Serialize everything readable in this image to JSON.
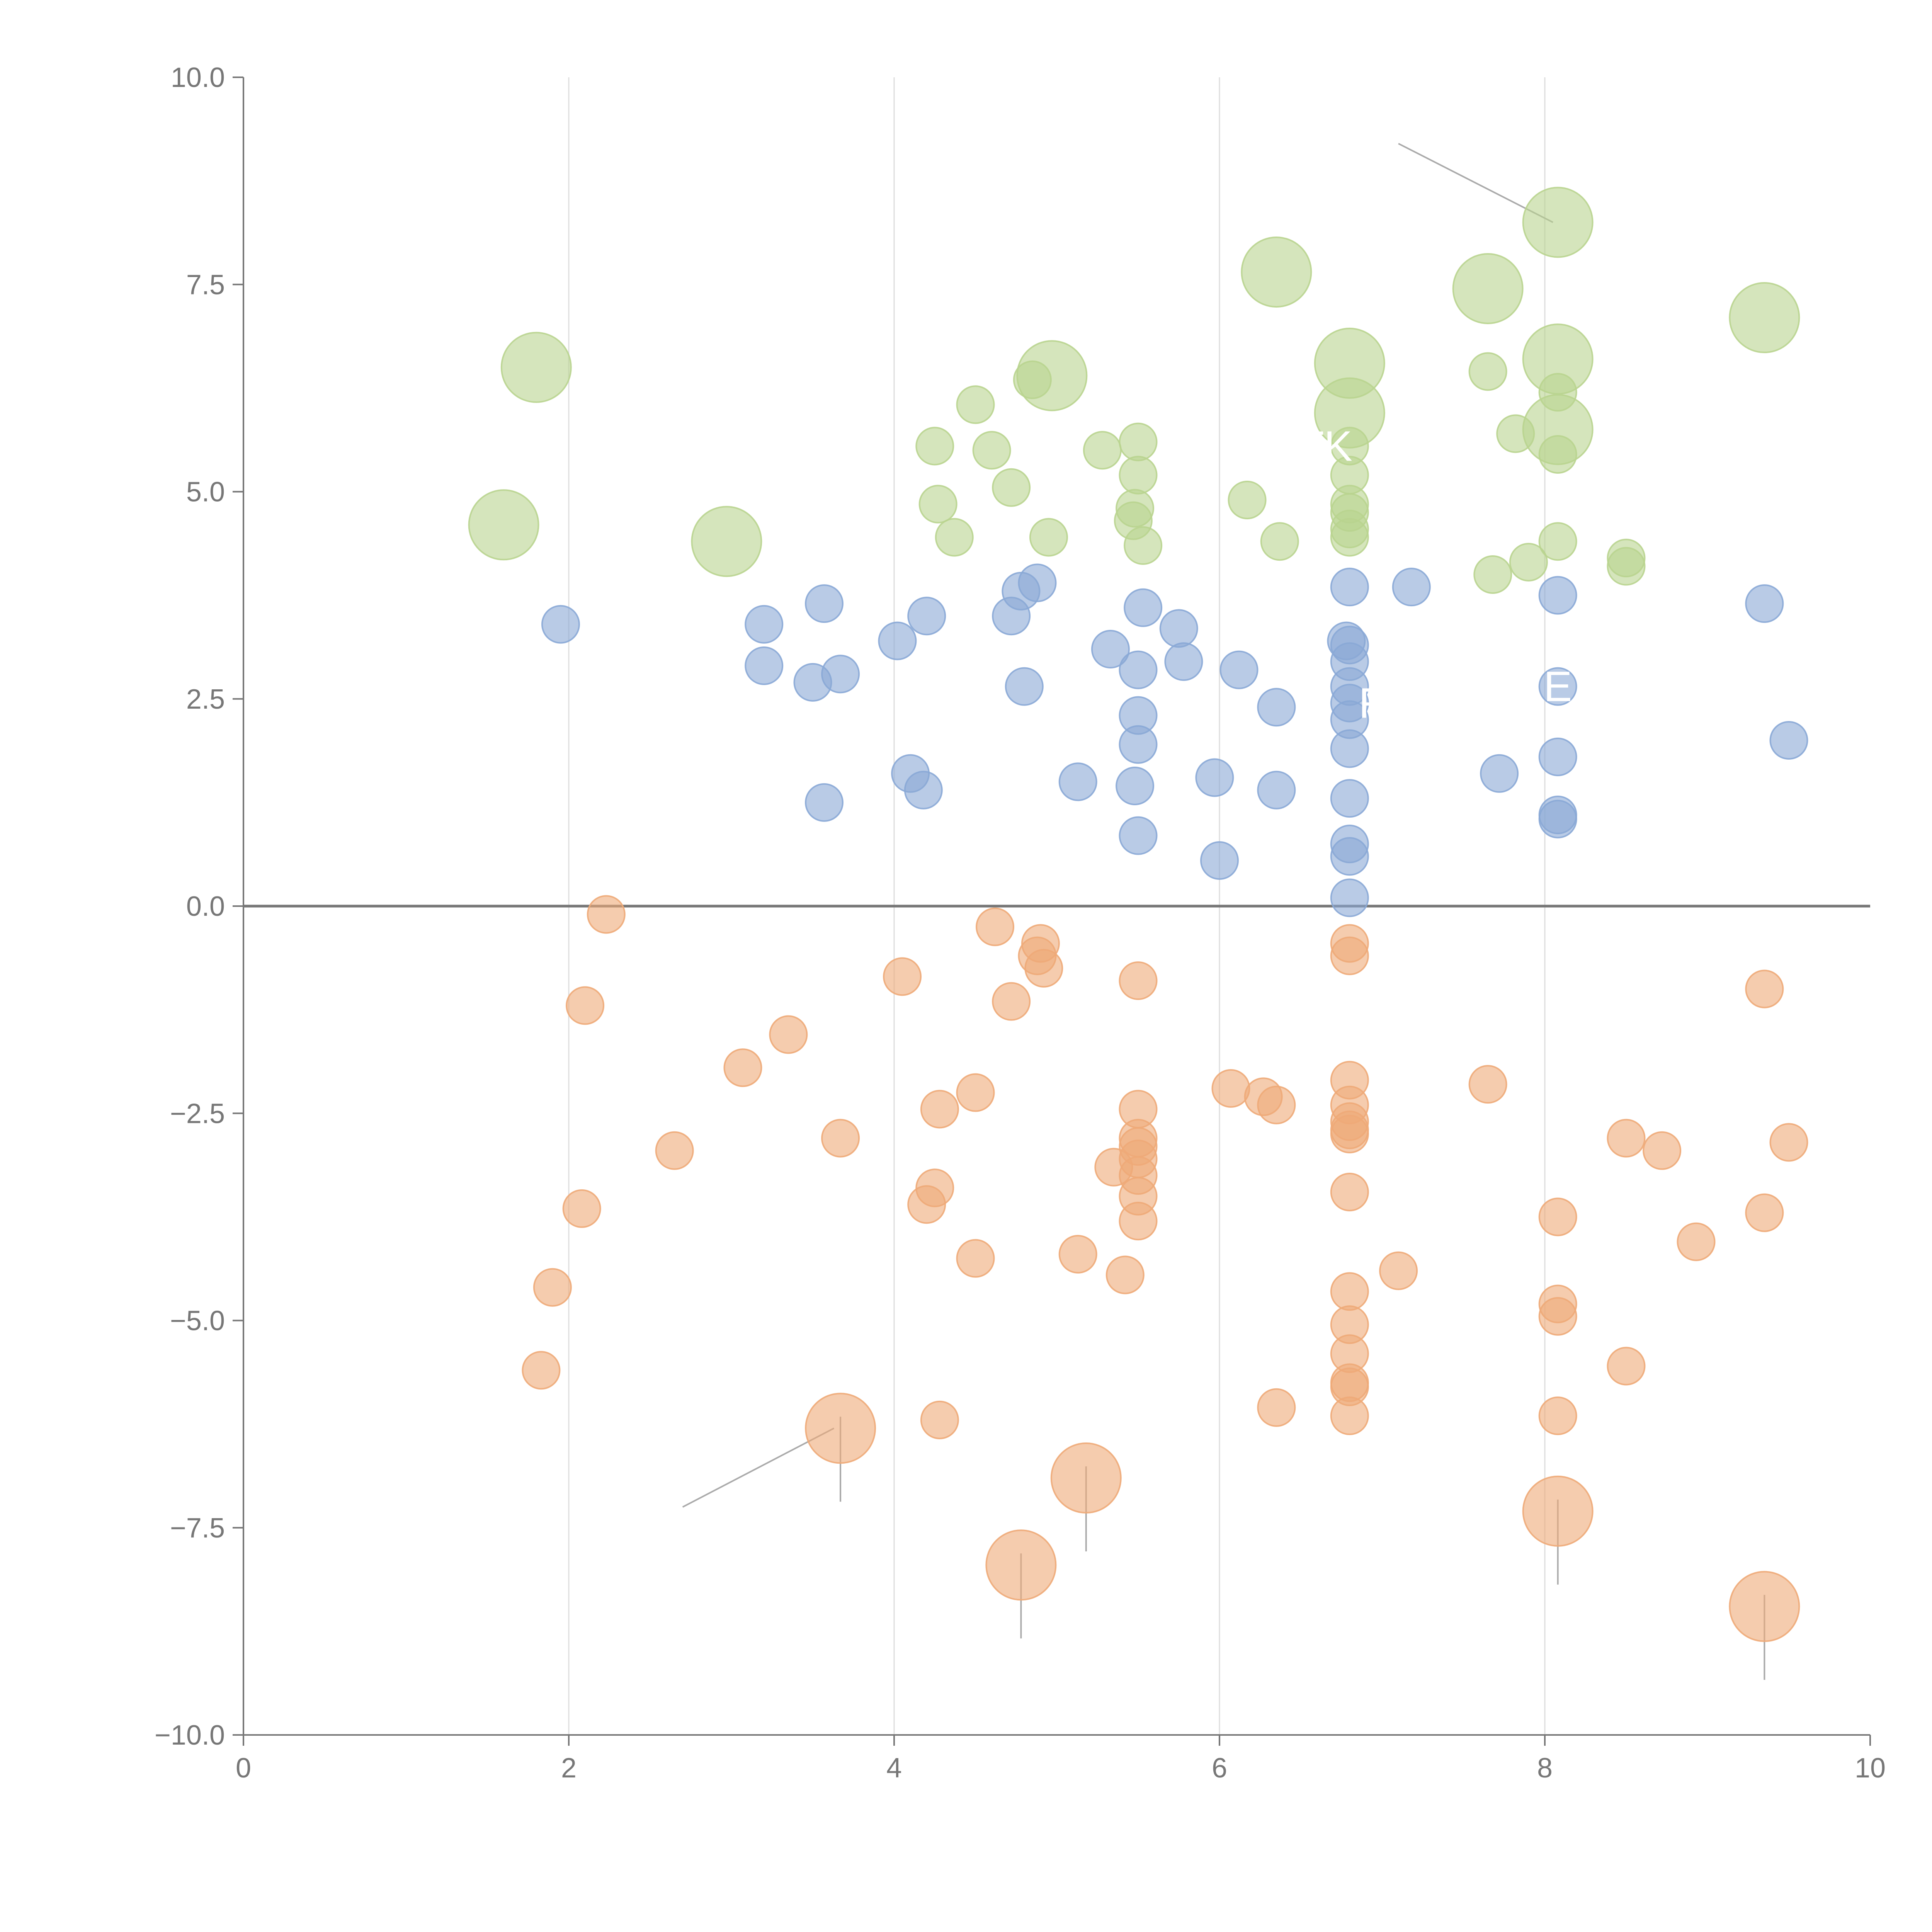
{
  "chart_data": {
    "type": "scatter",
    "title": "",
    "xlabel": "",
    "ylabel": "",
    "xlim": [
      0,
      10
    ],
    "ylim": [
      -10,
      10
    ],
    "x_ticks": [
      0,
      2,
      4,
      6,
      8,
      10
    ],
    "y_ticks": [
      -10,
      -7.5,
      -5,
      -2.5,
      0,
      2.5,
      5,
      7.5,
      10
    ],
    "x_tick_labels": [
      "0",
      "2",
      "4",
      "6",
      "8",
      "10"
    ],
    "y_tick_labels": [
      "−10.0",
      "−7.5",
      "−5.0",
      "−2.5",
      "0.0",
      "2.5",
      "5.0",
      "7.5",
      "10.0"
    ],
    "grid": "vertical gridlines at x tick positions",
    "zero_line": true,
    "colors": {
      "green": "#b9d48f",
      "blue": "#8aa9d6",
      "orange": "#eeaa78"
    },
    "series": [
      {
        "color": "green",
        "points": [
          [
            1.8,
            6.5,
            1
          ],
          [
            1.6,
            4.6,
            1
          ],
          [
            2.97,
            4.4,
            1
          ],
          [
            4.97,
            6.4,
            1
          ],
          [
            6.35,
            7.65,
            1
          ],
          [
            6.8,
            6.55,
            1
          ],
          [
            6.8,
            5.95,
            1
          ],
          [
            7.65,
            7.45,
            1
          ],
          [
            8.08,
            8.25,
            1
          ],
          [
            8.08,
            6.6,
            1
          ],
          [
            8.08,
            5.75,
            1
          ],
          [
            9.35,
            7.1,
            1
          ],
          [
            4.25,
            5.55,
            0
          ],
          [
            4.5,
            6.05,
            0
          ],
          [
            4.6,
            5.5,
            0
          ],
          [
            4.85,
            6.35,
            0
          ],
          [
            4.72,
            5.05,
            0
          ],
          [
            4.27,
            4.85,
            0
          ],
          [
            4.37,
            4.45,
            0
          ],
          [
            4.95,
            4.45,
            0
          ],
          [
            5.28,
            5.5,
            0
          ],
          [
            5.5,
            5.6,
            0
          ],
          [
            5.5,
            5.2,
            0
          ],
          [
            5.48,
            4.8,
            0
          ],
          [
            5.47,
            4.65,
            0
          ],
          [
            5.53,
            4.35,
            0
          ],
          [
            6.17,
            4.9,
            0
          ],
          [
            6.37,
            4.4,
            0
          ],
          [
            6.8,
            5.55,
            0
          ],
          [
            6.8,
            5.2,
            0
          ],
          [
            6.8,
            4.85,
            0
          ],
          [
            6.8,
            4.75,
            0
          ],
          [
            6.8,
            4.55,
            0
          ],
          [
            6.8,
            4.45,
            0
          ],
          [
            7.65,
            6.45,
            0
          ],
          [
            7.82,
            5.7,
            0
          ],
          [
            7.68,
            4.0,
            0
          ],
          [
            7.9,
            4.15,
            0
          ],
          [
            8.08,
            6.2,
            0
          ],
          [
            8.08,
            5.45,
            0
          ],
          [
            8.08,
            4.4,
            0
          ],
          [
            8.5,
            4.2,
            0
          ],
          [
            8.5,
            4.1,
            0
          ]
        ]
      },
      {
        "color": "blue",
        "points": [
          [
            1.95,
            3.4,
            0
          ],
          [
            3.2,
            3.4,
            0
          ],
          [
            3.2,
            2.9,
            0
          ],
          [
            3.5,
            2.7,
            0
          ],
          [
            3.57,
            3.65,
            0
          ],
          [
            3.67,
            2.8,
            0
          ],
          [
            3.57,
            1.25,
            0
          ],
          [
            4.02,
            3.2,
            0
          ],
          [
            4.2,
            3.5,
            0
          ],
          [
            4.1,
            1.6,
            0
          ],
          [
            4.18,
            1.4,
            0
          ],
          [
            4.72,
            3.5,
            0
          ],
          [
            4.78,
            3.8,
            0
          ],
          [
            4.88,
            3.9,
            0
          ],
          [
            4.8,
            2.65,
            0
          ],
          [
            5.13,
            1.5,
            0
          ],
          [
            5.33,
            3.1,
            0
          ],
          [
            5.5,
            2.85,
            0
          ],
          [
            5.53,
            3.6,
            0
          ],
          [
            5.5,
            2.3,
            0
          ],
          [
            5.5,
            1.95,
            0
          ],
          [
            5.48,
            1.45,
            0
          ],
          [
            5.5,
            0.85,
            0
          ],
          [
            5.75,
            3.35,
            0
          ],
          [
            5.78,
            2.95,
            0
          ],
          [
            5.97,
            1.55,
            0
          ],
          [
            6.0,
            0.55,
            0
          ],
          [
            6.12,
            2.85,
            0
          ],
          [
            6.35,
            2.4,
            0
          ],
          [
            6.35,
            1.4,
            0
          ],
          [
            6.78,
            3.2,
            0
          ],
          [
            6.8,
            3.85,
            0
          ],
          [
            6.8,
            3.15,
            0
          ],
          [
            6.8,
            2.95,
            0
          ],
          [
            6.8,
            2.65,
            0
          ],
          [
            6.8,
            2.45,
            0
          ],
          [
            6.8,
            2.25,
            0
          ],
          [
            6.8,
            1.9,
            0
          ],
          [
            6.8,
            1.3,
            0
          ],
          [
            6.8,
            0.75,
            0
          ],
          [
            6.8,
            0.6,
            0
          ],
          [
            6.8,
            0.1,
            0
          ],
          [
            7.18,
            3.85,
            0
          ],
          [
            7.72,
            1.6,
            0
          ],
          [
            8.08,
            3.75,
            0
          ],
          [
            8.08,
            2.65,
            0
          ],
          [
            8.08,
            1.8,
            0
          ],
          [
            8.08,
            1.1,
            0
          ],
          [
            8.08,
            1.05,
            0
          ],
          [
            9.35,
            3.65,
            0
          ],
          [
            9.5,
            2.0,
            0
          ]
        ]
      },
      {
        "color": "orange",
        "points": [
          [
            3.67,
            -6.3,
            1
          ],
          [
            4.78,
            -7.95,
            1
          ],
          [
            5.18,
            -6.9,
            1
          ],
          [
            8.08,
            -7.3,
            1
          ],
          [
            9.35,
            -8.45,
            1
          ],
          [
            2.23,
            -0.1,
            0
          ],
          [
            2.1,
            -1.2,
            0
          ],
          [
            2.08,
            -3.65,
            0
          ],
          [
            1.9,
            -4.6,
            0
          ],
          [
            1.83,
            -5.6,
            0
          ],
          [
            2.65,
            -2.95,
            0
          ],
          [
            3.07,
            -1.95,
            0
          ],
          [
            3.35,
            -1.55,
            0
          ],
          [
            3.67,
            -2.8,
            0
          ],
          [
            4.05,
            -0.85,
            0
          ],
          [
            4.28,
            -2.45,
            0
          ],
          [
            4.25,
            -3.4,
            0
          ],
          [
            4.2,
            -3.6,
            0
          ],
          [
            4.28,
            -6.2,
            0
          ],
          [
            4.5,
            -2.25,
            0
          ],
          [
            4.5,
            -4.25,
            0
          ],
          [
            4.62,
            -0.25,
            0
          ],
          [
            4.72,
            -1.15,
            0
          ],
          [
            4.9,
            -0.45,
            0
          ],
          [
            4.88,
            -0.6,
            0
          ],
          [
            4.92,
            -0.75,
            0
          ],
          [
            5.13,
            -4.2,
            0
          ],
          [
            5.35,
            -3.15,
            0
          ],
          [
            5.42,
            -4.45,
            0
          ],
          [
            5.5,
            -0.9,
            0
          ],
          [
            5.5,
            -2.45,
            0
          ],
          [
            5.5,
            -2.8,
            0
          ],
          [
            5.5,
            -2.9,
            0
          ],
          [
            5.5,
            -3.05,
            0
          ],
          [
            5.5,
            -3.25,
            0
          ],
          [
            5.5,
            -3.5,
            0
          ],
          [
            5.5,
            -3.8,
            0
          ],
          [
            6.07,
            -2.2,
            0
          ],
          [
            6.27,
            -2.3,
            0
          ],
          [
            6.35,
            -2.4,
            0
          ],
          [
            6.35,
            -6.05,
            0
          ],
          [
            6.8,
            -0.45,
            0
          ],
          [
            6.8,
            -0.6,
            0
          ],
          [
            6.8,
            -2.1,
            0
          ],
          [
            6.8,
            -2.4,
            0
          ],
          [
            6.8,
            -2.6,
            0
          ],
          [
            6.8,
            -2.7,
            0
          ],
          [
            6.8,
            -2.75,
            0
          ],
          [
            6.8,
            -3.45,
            0
          ],
          [
            6.8,
            -4.65,
            0
          ],
          [
            6.8,
            -5.05,
            0
          ],
          [
            6.8,
            -5.4,
            0
          ],
          [
            6.8,
            -5.75,
            0
          ],
          [
            6.8,
            -5.8,
            0
          ],
          [
            6.8,
            -6.15,
            0
          ],
          [
            7.1,
            -4.4,
            0
          ],
          [
            7.65,
            -2.15,
            0
          ],
          [
            8.08,
            -3.75,
            0
          ],
          [
            8.08,
            -4.8,
            0
          ],
          [
            8.08,
            -4.95,
            0
          ],
          [
            8.08,
            -6.15,
            0
          ],
          [
            8.5,
            -2.8,
            0
          ],
          [
            8.5,
            -5.55,
            0
          ],
          [
            8.72,
            -2.95,
            0
          ],
          [
            8.93,
            -4.05,
            0
          ],
          [
            9.35,
            -1.0,
            0
          ],
          [
            9.35,
            -3.7,
            0
          ],
          [
            9.5,
            -2.85,
            0
          ]
        ]
      }
    ],
    "annotations": [
      {
        "text": "TK",
        "x": 6.65,
        "y": 5.55
      },
      {
        "text": "R",
        "x": 6.95,
        "y": 2.45
      },
      {
        "text": "E",
        "x": 8.08,
        "y": 2.65
      }
    ]
  }
}
